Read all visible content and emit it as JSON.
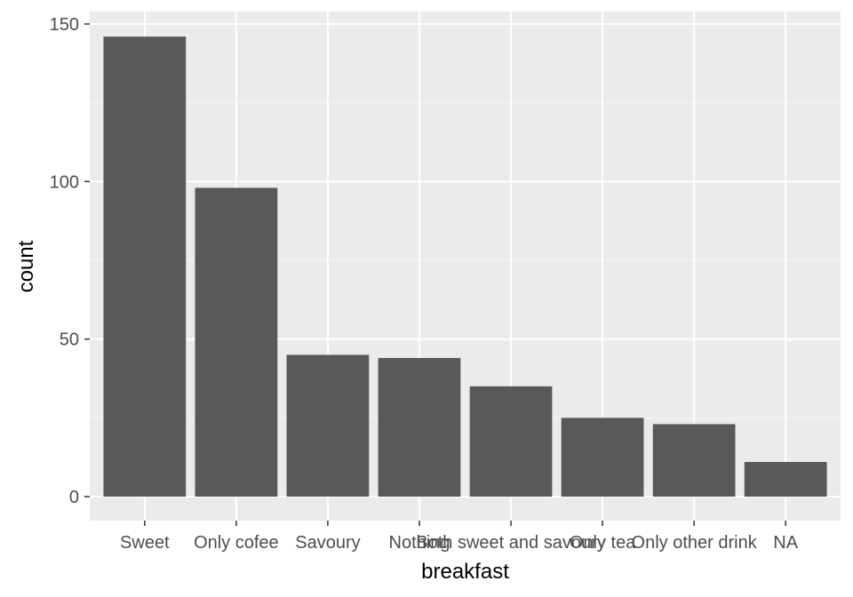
{
  "chart_data": {
    "type": "bar",
    "title": "",
    "xlabel": "breakfast",
    "ylabel": "count",
    "categories": [
      "Sweet",
      "Only cofee",
      "Savoury",
      "Nothing",
      "Both sweet and savoury",
      "Only tea",
      "Only other drink",
      "NA"
    ],
    "values": [
      146,
      98,
      45,
      44,
      35,
      25,
      23,
      11
    ],
    "ylim": [
      0,
      150
    ],
    "yticks": [
      0,
      50,
      100,
      150
    ],
    "grid": true,
    "colors": {
      "panel": "#EBEBEB",
      "grid_major": "#FFFFFF",
      "grid_minor": "#F5F5F5",
      "bar": "#595959",
      "tick": "#333333"
    }
  }
}
